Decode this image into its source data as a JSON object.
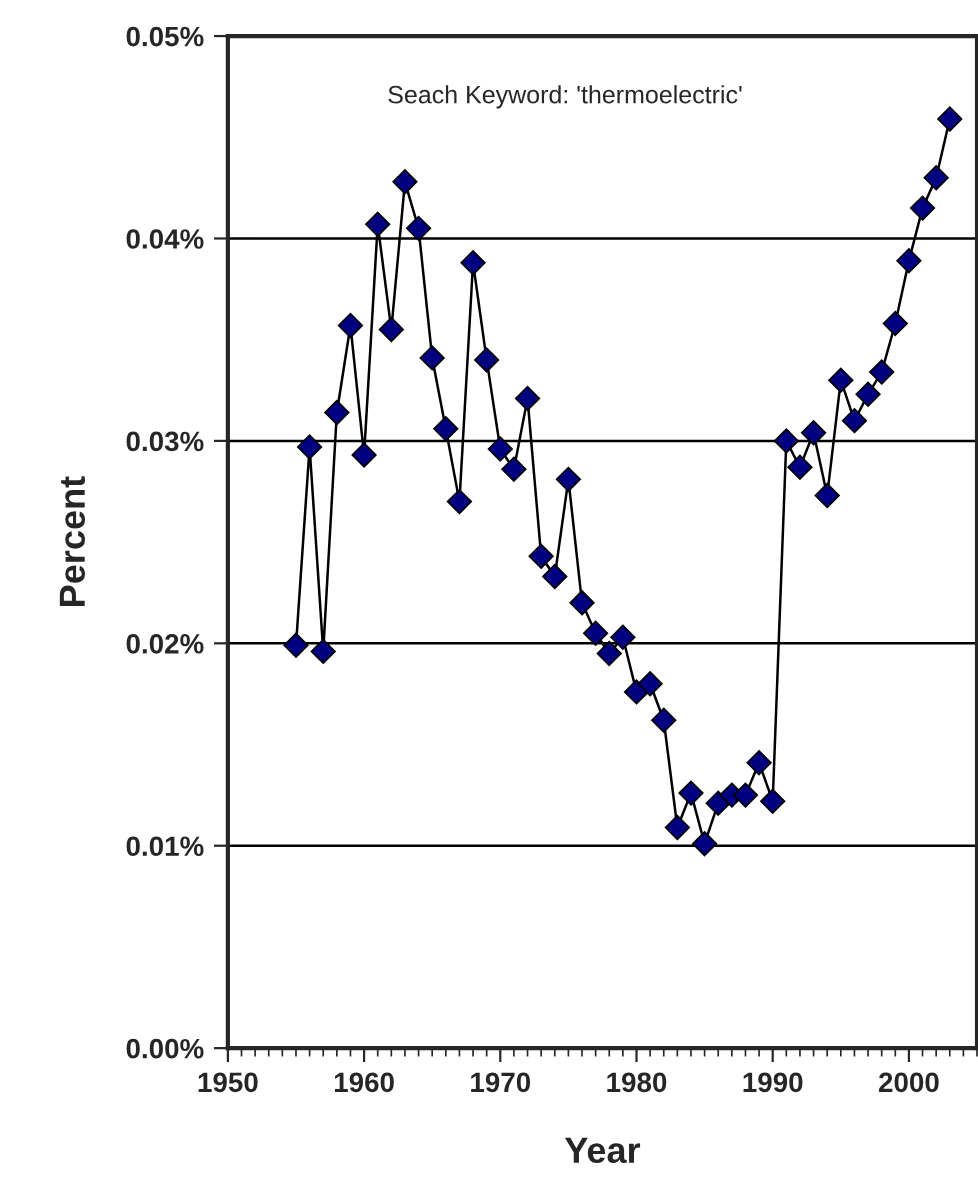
{
  "chart_data": {
    "type": "line",
    "xlabel": "Year",
    "ylabel": "Percent",
    "annotations": [
      "Seach Keyword: 'thermoelectric'"
    ],
    "x": [
      1955,
      1956,
      1957,
      1958,
      1959,
      1960,
      1961,
      1962,
      1963,
      1964,
      1965,
      1966,
      1967,
      1968,
      1969,
      1970,
      1971,
      1972,
      1973,
      1974,
      1975,
      1976,
      1977,
      1978,
      1979,
      1980,
      1981,
      1982,
      1983,
      1984,
      1985,
      1986,
      1987,
      1988,
      1989,
      1990,
      1991,
      1992,
      1993,
      1994,
      1995,
      1996,
      1997,
      1998,
      1999,
      2000,
      2001,
      2002,
      2003
    ],
    "series": [
      {
        "color": "#000080",
        "values": [
          0.0199,
          0.0297,
          0.0196,
          0.0314,
          0.0357,
          0.0293,
          0.0407,
          0.0355,
          0.0428,
          0.0405,
          0.0341,
          0.0306,
          0.027,
          0.0388,
          0.034,
          0.0296,
          0.0286,
          0.0321,
          0.0243,
          0.0233,
          0.0281,
          0.022,
          0.0205,
          0.0195,
          0.0203,
          0.0176,
          0.018,
          0.0162,
          0.0109,
          0.0126,
          0.0101,
          0.0121,
          0.0125,
          0.0125,
          0.0141,
          0.0122,
          0.03,
          0.0287,
          0.0304,
          0.0273,
          0.033,
          0.031,
          0.0323,
          0.0334,
          0.0358,
          0.0389,
          0.0415,
          0.043,
          0.0459
        ]
      }
    ],
    "xlim": [
      1950,
      2005
    ],
    "xticks": [
      1950,
      1960,
      1970,
      1980,
      1990,
      2000
    ],
    "ylim": [
      0,
      0.05
    ],
    "yticks": [
      {
        "value": 0,
        "label": "0.00%"
      },
      {
        "value": 0.01,
        "label": "0.01%"
      },
      {
        "value": 0.02,
        "label": "0.02%"
      },
      {
        "value": 0.03,
        "label": "0.03%"
      },
      {
        "value": 0.04,
        "label": "0.04%"
      },
      {
        "value": 0.05,
        "label": "0.05%"
      }
    ],
    "grid": "y",
    "marker": "diamond",
    "line_style": "solid",
    "legend": false
  }
}
